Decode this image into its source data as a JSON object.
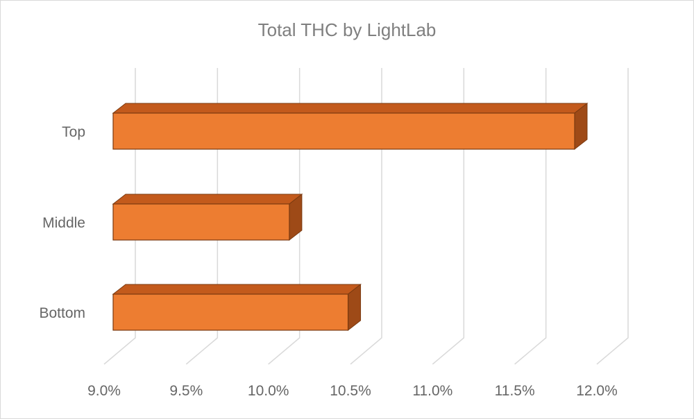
{
  "chart_data": {
    "type": "bar",
    "orientation": "horizontal",
    "style": "3d",
    "title": "Total THC by LightLab",
    "xlabel": "",
    "ylabel": "",
    "categories": [
      "Bottom",
      "Middle",
      "Top"
    ],
    "values": [
      10.4,
      10.05,
      11.75
    ],
    "unit": "%",
    "xlim": [
      9.0,
      12.0
    ],
    "xticks": [
      "9.0%",
      "9.5%",
      "10.0%",
      "10.5%",
      "11.0%",
      "11.5%",
      "12.0%"
    ],
    "grid": true,
    "legend": "none",
    "colors": {
      "bar_front": "#ED7D31",
      "bar_top": "#C35A1C",
      "bar_side": "#9E4A17",
      "bar_outline": "#7A3A10",
      "gridline": "#D9D9D9",
      "text": "#666666",
      "title": "#7F7F7F"
    }
  }
}
